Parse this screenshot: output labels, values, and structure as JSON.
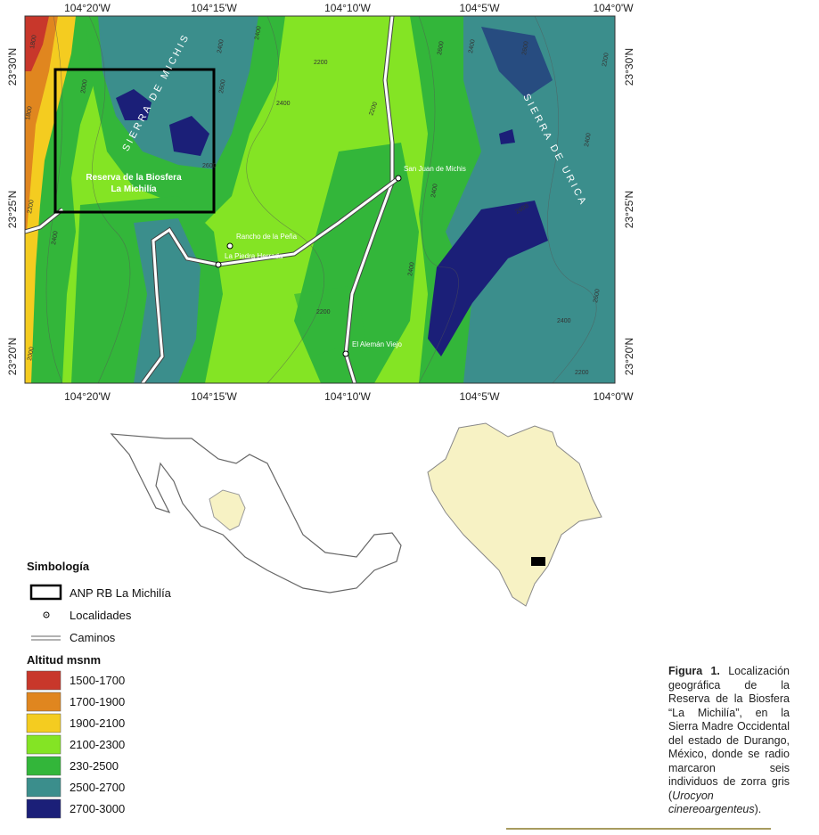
{
  "map": {
    "top_labels": [
      "104°20'W",
      "104°15'W",
      "104°10'W",
      "104°5'W",
      "104°0'W"
    ],
    "bottom_labels": [
      "104°20'W",
      "104°15'W",
      "104°10'W",
      "104°5'W",
      "104°0'W"
    ],
    "left_labels": [
      "23°30'N",
      "23°25'N",
      "23°20'N"
    ],
    "right_labels": [
      "23°30'N",
      "23°25'N",
      "23°20'N"
    ],
    "mountains": [
      "SIERRA DE MICHIS",
      "SIERRA DE URICA"
    ],
    "reserve_label": [
      "Reserva de la Biosfera",
      "La Michilía"
    ],
    "localities": [
      "San Juan de Michis",
      "Rancho de la Peña",
      "La Piedra Herrada",
      "El Alemán Viejo"
    ],
    "contour_labels": [
      1800,
      1800,
      2000,
      2200,
      2400,
      2400,
      2600,
      2600,
      2400,
      2200,
      2400,
      2200,
      2600,
      2400,
      2400,
      2600,
      2200,
      2400,
      2600,
      2200,
      2000,
      2400,
      2600,
      2400,
      2200
    ]
  },
  "legend": {
    "title": "Simbología",
    "items": [
      "ANP RB La Michilía",
      "Localidades",
      "Caminos"
    ],
    "altitude_title": "Altitud msnm",
    "classes": [
      {
        "label": "1500-1700",
        "color": "#c8372b"
      },
      {
        "label": "1700-1900",
        "color": "#e0861f"
      },
      {
        "label": "1900-2100",
        "color": "#f4cc20"
      },
      {
        "label": "2100-2300",
        "color": "#84e424"
      },
      {
        "label": "230-2500",
        "color": "#33b63a"
      },
      {
        "label": "2500-2700",
        "color": "#3b8e8c"
      },
      {
        "label": "2700-3000",
        "color": "#1b1f78"
      }
    ]
  },
  "caption": {
    "label": "Figura 1.",
    "text": "Localización geográfica de la Reserva de la Biosfera “La Michilía”, en la Sierra Madre Occidental del estado de Durango, México, donde se radio marcaron seis individuos de zorra gris (",
    "species": "Urocyon cinereoargenteus",
    "end": ")."
  }
}
